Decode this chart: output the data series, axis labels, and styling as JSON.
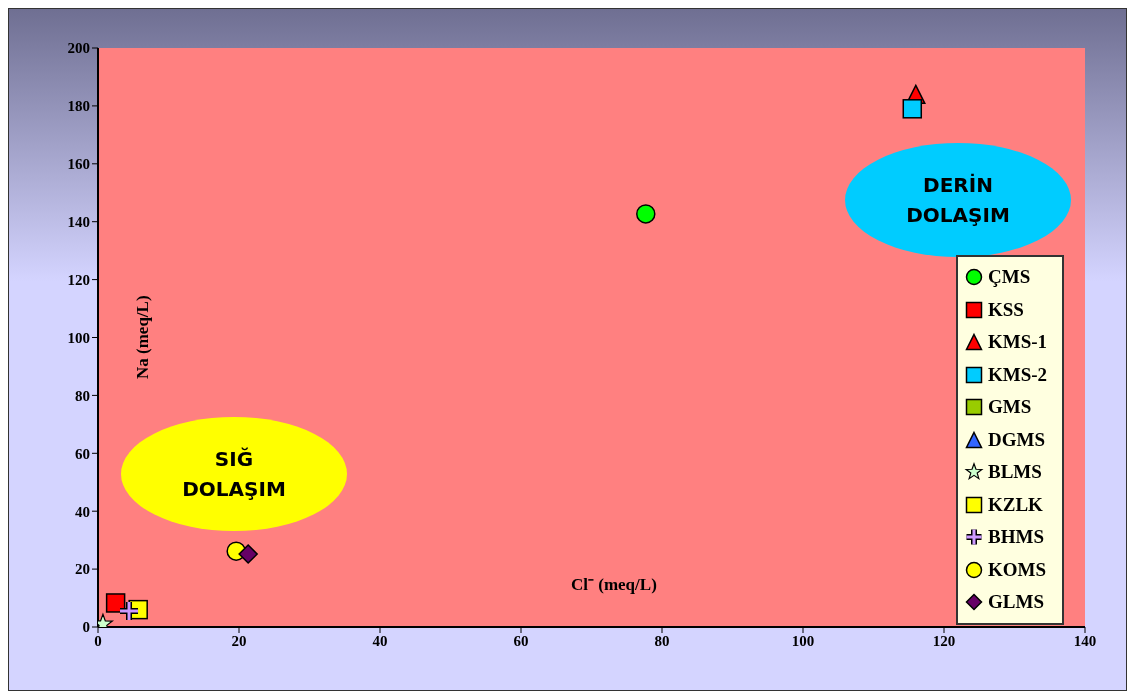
{
  "chart_data": {
    "type": "scatter",
    "xlabel": "Cl⁻ (meq/L)",
    "ylabel": "Na (meq/L)",
    "xlim": [
      0,
      140
    ],
    "xticks": [
      0,
      20,
      40,
      60,
      80,
      100,
      120,
      140
    ],
    "ylim": [
      0,
      200
    ],
    "yticks": [
      0,
      20,
      40,
      60,
      80,
      100,
      120,
      140,
      160,
      180,
      200
    ],
    "grid": false,
    "legend": "right",
    "annotations": [
      "SIĞ DOLAŞIM",
      "DERİN DOLAŞIM"
    ],
    "series": [
      {
        "name": "ÇMS",
        "color": "#00ff00",
        "marker": "circle",
        "x": [
          77.7
        ],
        "values": [
          142.7
        ]
      },
      {
        "name": "KSS",
        "color": "#ff0000",
        "marker": "square",
        "x": [
          2.5
        ],
        "values": [
          8.3
        ]
      },
      {
        "name": "KMS-1",
        "color": "#ff0000",
        "marker": "triangle",
        "x": [
          116
        ],
        "values": [
          184
        ]
      },
      {
        "name": "KMS-2",
        "color": "#00ccff",
        "marker": "square",
        "x": [
          115.5
        ],
        "values": [
          179
        ]
      },
      {
        "name": "GMS",
        "color": "#99cc00",
        "marker": "square"
      },
      {
        "name": "DGMS",
        "color": "#3366ff",
        "marker": "triangle"
      },
      {
        "name": "BLMS",
        "color": "#ccffcc",
        "marker": "star",
        "x": [
          0.7
        ],
        "values": [
          1
        ]
      },
      {
        "name": "KZLK",
        "color": "#ffff00",
        "marker": "square",
        "x": [
          5.7
        ],
        "values": [
          6
        ]
      },
      {
        "name": "BHMS",
        "color": "#cc99ff",
        "marker": "cross",
        "x": [
          4.4
        ],
        "values": [
          5.5
        ]
      },
      {
        "name": "KOMS",
        "color": "#ffff00",
        "marker": "circle",
        "x": [
          19.6
        ],
        "values": [
          26.2
        ]
      },
      {
        "name": "GLMS",
        "color": "#660066",
        "marker": "diamond",
        "x": [
          21.3
        ],
        "values": [
          25.2
        ]
      }
    ]
  }
}
